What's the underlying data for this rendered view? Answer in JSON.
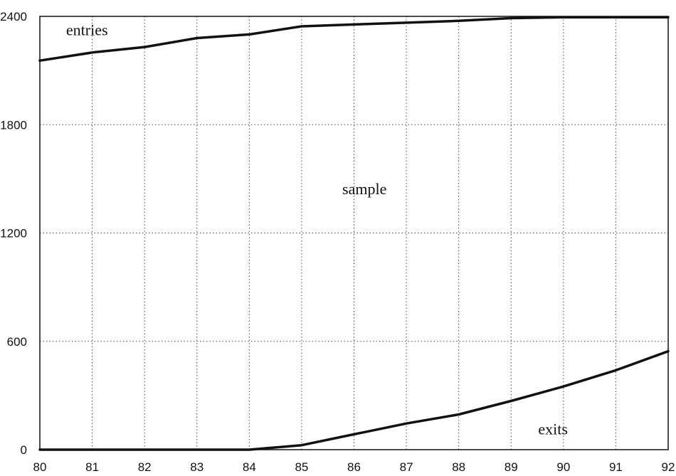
{
  "chart_data": {
    "type": "line",
    "title": "",
    "xlabel": "",
    "ylabel": "",
    "x": [
      80,
      81,
      82,
      83,
      84,
      85,
      86,
      87,
      88,
      89,
      90,
      91,
      92
    ],
    "x_tick_labels": [
      "80",
      "81",
      "82",
      "83",
      "84",
      "85",
      "86",
      "87",
      "88",
      "89",
      "90",
      "91",
      "92"
    ],
    "y_ticks": [
      0,
      600,
      1200,
      1800,
      2400
    ],
    "y_tick_labels": [
      "0",
      "600",
      "1200",
      "1800",
      "2400"
    ],
    "xlim": [
      80,
      92
    ],
    "ylim": [
      0,
      2400
    ],
    "grid": true,
    "series": [
      {
        "name": "entries",
        "values": [
          2155,
          2200,
          2230,
          2280,
          2300,
          2345,
          2355,
          2365,
          2375,
          2390,
          2395,
          2395,
          2395
        ]
      },
      {
        "name": "exits",
        "values": [
          0,
          0,
          0,
          0,
          0,
          25,
          85,
          145,
          195,
          270,
          350,
          440,
          545
        ]
      }
    ],
    "annotations": [
      {
        "text": "entries",
        "x": 80.9,
        "y": 2295
      },
      {
        "text": "sample",
        "x": 86.2,
        "y": 1415
      },
      {
        "text": "exits",
        "x": 89.8,
        "y": 85
      }
    ]
  }
}
